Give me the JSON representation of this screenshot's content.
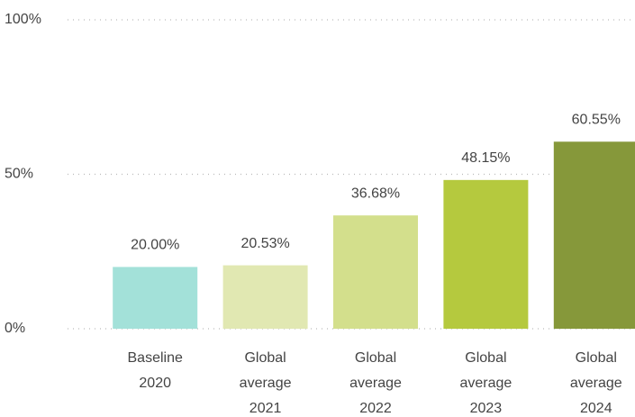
{
  "chart_data": {
    "type": "bar",
    "categories": [
      [
        "Baseline",
        "2020"
      ],
      [
        "Global",
        "average",
        "2021"
      ],
      [
        "Global",
        "average",
        "2022"
      ],
      [
        "Global",
        "average",
        "2023"
      ],
      [
        "Global",
        "average",
        "2024"
      ]
    ],
    "values": [
      20.0,
      20.53,
      36.68,
      48.15,
      60.55
    ],
    "value_labels": [
      "20.00%",
      "20.53%",
      "36.68%",
      "48.15%",
      "60.55%"
    ],
    "colors": [
      "#a3e1d9",
      "#e1e8b2",
      "#d3df8c",
      "#b5c93e",
      "#86983a"
    ],
    "ylim": [
      0,
      100
    ],
    "yticks": [
      {
        "value": 0,
        "label": "0%"
      },
      {
        "value": 50,
        "label": "50%"
      },
      {
        "value": 100,
        "label": "100%"
      }
    ],
    "grid": true
  }
}
